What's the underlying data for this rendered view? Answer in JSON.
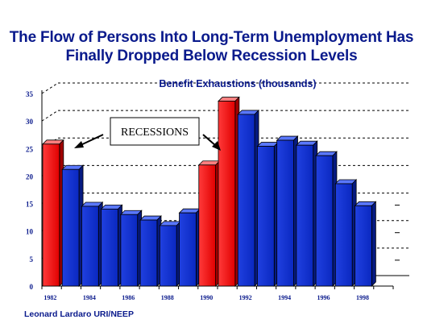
{
  "title": {
    "line1": "The Flow of Persons Into Long-Term Unemployment Has",
    "line2": "Finally Dropped Below Recession Levels"
  },
  "footer": "Leonard Lardaro  URI/NEEP",
  "colors": {
    "title": "#0a1a8c",
    "recession_bar": "#ff0000",
    "normal_bar": "#1030d0",
    "label_text": "#0a1a8c"
  },
  "chart_data": {
    "type": "bar",
    "subtitle": "Benefit Exhaustions (thousands)",
    "annotation": "RECESSIONS",
    "categories": [
      "1982",
      "1983",
      "1984",
      "1985",
      "1986",
      "1987",
      "1988",
      "1989",
      "1990",
      "1991",
      "1992",
      "1993",
      "1994",
      "1995",
      "1996",
      "1997",
      "1998",
      "1999"
    ],
    "values": [
      25.8,
      21.2,
      14.5,
      14.0,
      13.0,
      12.0,
      11.0,
      13.3,
      22.0,
      33.6,
      31.2,
      25.4,
      26.5,
      25.6,
      23.7,
      18.6,
      14.6,
      0
    ],
    "highlighted": [
      "1982",
      "1990",
      "1991"
    ],
    "highlight_label": "recession",
    "x_tick_labels": [
      "1982",
      "1984",
      "1986",
      "1988",
      "1990",
      "1992",
      "1994",
      "1996",
      "1998"
    ],
    "y_ticks": [
      0,
      5,
      10,
      15,
      20,
      25,
      30,
      35
    ],
    "ylim": [
      0,
      35
    ],
    "grid": true
  }
}
